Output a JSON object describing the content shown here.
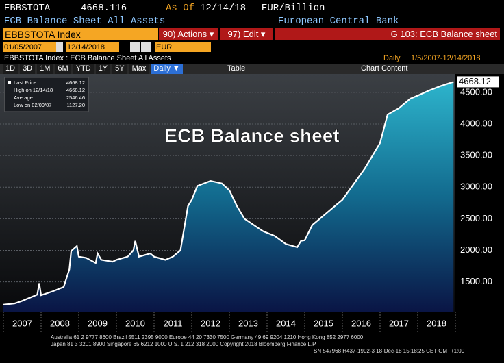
{
  "header": {
    "ticker": "EBBSTOTA",
    "price": "4668.116",
    "as_of": "As Of",
    "date": "12/14/18",
    "unit": "EUR/Billion",
    "description": "ECB Balance Sheet All Assets",
    "source": "European Central Bank"
  },
  "toolbar": {
    "security": "EBBSTOTA Index",
    "actions": "90) Actions ▾",
    "edit": "97) Edit ▾",
    "page": "G 103: ECB Balance sheet",
    "start": "01/05/2007",
    "end": "12/14/2018",
    "currency": "EUR",
    "chart_desc": "EBBSTOTA Index : ECB Balance Sheet All Assets",
    "freq": "Daily",
    "range": "1/5/2007-12/14/2018",
    "periods": [
      "1D",
      "3D",
      "1M",
      "6M",
      "YTD",
      "1Y",
      "5Y",
      "Max"
    ],
    "period_select": "Daily ▼",
    "table": "Table",
    "chart_content": "Chart Content"
  },
  "chart_data": {
    "type": "area",
    "title": "ECB Balance sheet",
    "legend": [
      {
        "name": "Last Price",
        "value": "4668.12"
      },
      {
        "name": "High on 12/14/18",
        "value": "4668.12"
      },
      {
        "name": "Average",
        "value": "2546.46"
      },
      {
        "name": "Low on 02/09/07",
        "value": "1127.20"
      }
    ],
    "last_value_label": "4668.12",
    "xlim": [
      2007,
      2019
    ],
    "xticks": [
      {
        "value": 2007.5,
        "label": "2007"
      },
      {
        "value": 2008.5,
        "label": "2008"
      },
      {
        "value": 2009.5,
        "label": "2009"
      },
      {
        "value": 2010.5,
        "label": "2010"
      },
      {
        "value": 2011.5,
        "label": "2011"
      },
      {
        "value": 2012.5,
        "label": "2012"
      },
      {
        "value": 2013.5,
        "label": "2013"
      },
      {
        "value": 2014.5,
        "label": "2014"
      },
      {
        "value": 2015.5,
        "label": "2015"
      },
      {
        "value": 2016.5,
        "label": "2016"
      },
      {
        "value": 2017.5,
        "label": "2017"
      },
      {
        "value": 2018.5,
        "label": "2018"
      }
    ],
    "ylim": [
      1030,
      4770
    ],
    "yticks": [
      {
        "value": 1500,
        "label": "1500.00"
      },
      {
        "value": 2000,
        "label": "2000.00"
      },
      {
        "value": 2500,
        "label": "2500.00"
      },
      {
        "value": 3000,
        "label": "3000.00"
      },
      {
        "value": 3500,
        "label": "3500.00"
      },
      {
        "value": 4000,
        "label": "4000.00"
      },
      {
        "value": 4500,
        "label": "4500.00"
      }
    ],
    "grid": true,
    "series": [
      {
        "name": "Last Price",
        "color": "#ffffff",
        "x": [
          2007.0,
          2007.3,
          2007.5,
          2007.7,
          2007.9,
          2007.95,
          2008.0,
          2008.3,
          2008.6,
          2008.75,
          2008.8,
          2008.95,
          2009.0,
          2009.2,
          2009.45,
          2009.5,
          2009.6,
          2009.9,
          2010.0,
          2010.3,
          2010.45,
          2010.5,
          2010.6,
          2010.9,
          2011.0,
          2011.3,
          2011.5,
          2011.7,
          2011.9,
          2012.0,
          2012.15,
          2012.5,
          2012.8,
          2013.0,
          2013.2,
          2013.4,
          2013.7,
          2013.9,
          2014.2,
          2014.5,
          2014.8,
          2014.9,
          2015.0,
          2015.2,
          2015.5,
          2015.8,
          2016.0,
          2016.3,
          2016.6,
          2016.9,
          2017.0,
          2017.2,
          2017.5,
          2017.8,
          2018.0,
          2018.3,
          2018.6,
          2018.95
        ],
        "values": [
          1140,
          1160,
          1200,
          1250,
          1300,
          1480,
          1290,
          1350,
          1420,
          1700,
          1990,
          2070,
          1900,
          1880,
          1800,
          1950,
          1850,
          1820,
          1850,
          1900,
          2000,
          2150,
          1900,
          1950,
          1900,
          1850,
          1900,
          2000,
          2700,
          2800,
          3020,
          3100,
          3060,
          2950,
          2700,
          2500,
          2380,
          2300,
          2230,
          2100,
          2050,
          2150,
          2160,
          2400,
          2550,
          2700,
          2800,
          3050,
          3300,
          3600,
          3700,
          4150,
          4250,
          4400,
          4450,
          4530,
          4600,
          4668
        ]
      }
    ]
  },
  "footer": {
    "line1": "Australia 61 2 9777 8600 Brazil 5511 2395 9000 Europe 44 20 7330 7500 Germany 49 69 9204 1210 Hong Kong 852 2977 6000",
    "line2": "Japan 81 3 3201 8900        Singapore 65 6212 1000        U.S. 1 212 318 2000        Copyright 2018 Bloomberg Finance L.P.",
    "line3": "SN 547968 H437-1902-3 18-Dec-18 15:18:25 CET  GMT+1:00"
  }
}
